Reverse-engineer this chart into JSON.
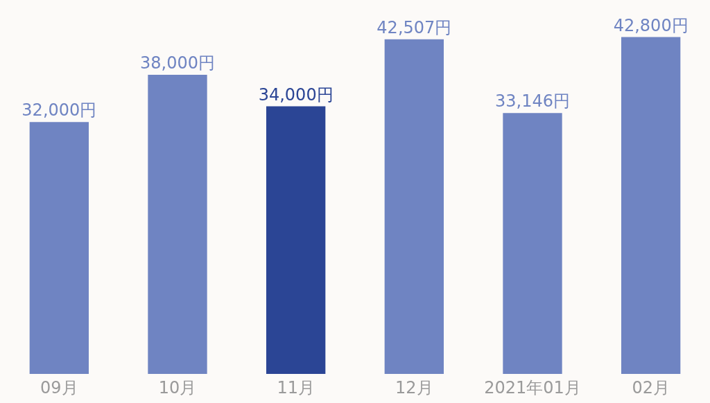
{
  "chart_data": {
    "type": "bar",
    "categories": [
      "09月",
      "10月",
      "11月",
      "12月",
      "2021年01月",
      "02月"
    ],
    "values": [
      32000,
      38000,
      34000,
      42507,
      33146,
      42800
    ],
    "colors": [
      "#6f84c2",
      "#6f84c2",
      "#2b4595",
      "#6f84c2",
      "#6f84c2",
      "#6f84c2"
    ],
    "value_labels": [
      "32,000円",
      "38,000円",
      "34,000円",
      "42,507円",
      "33,146円",
      "42,800円"
    ]
  }
}
